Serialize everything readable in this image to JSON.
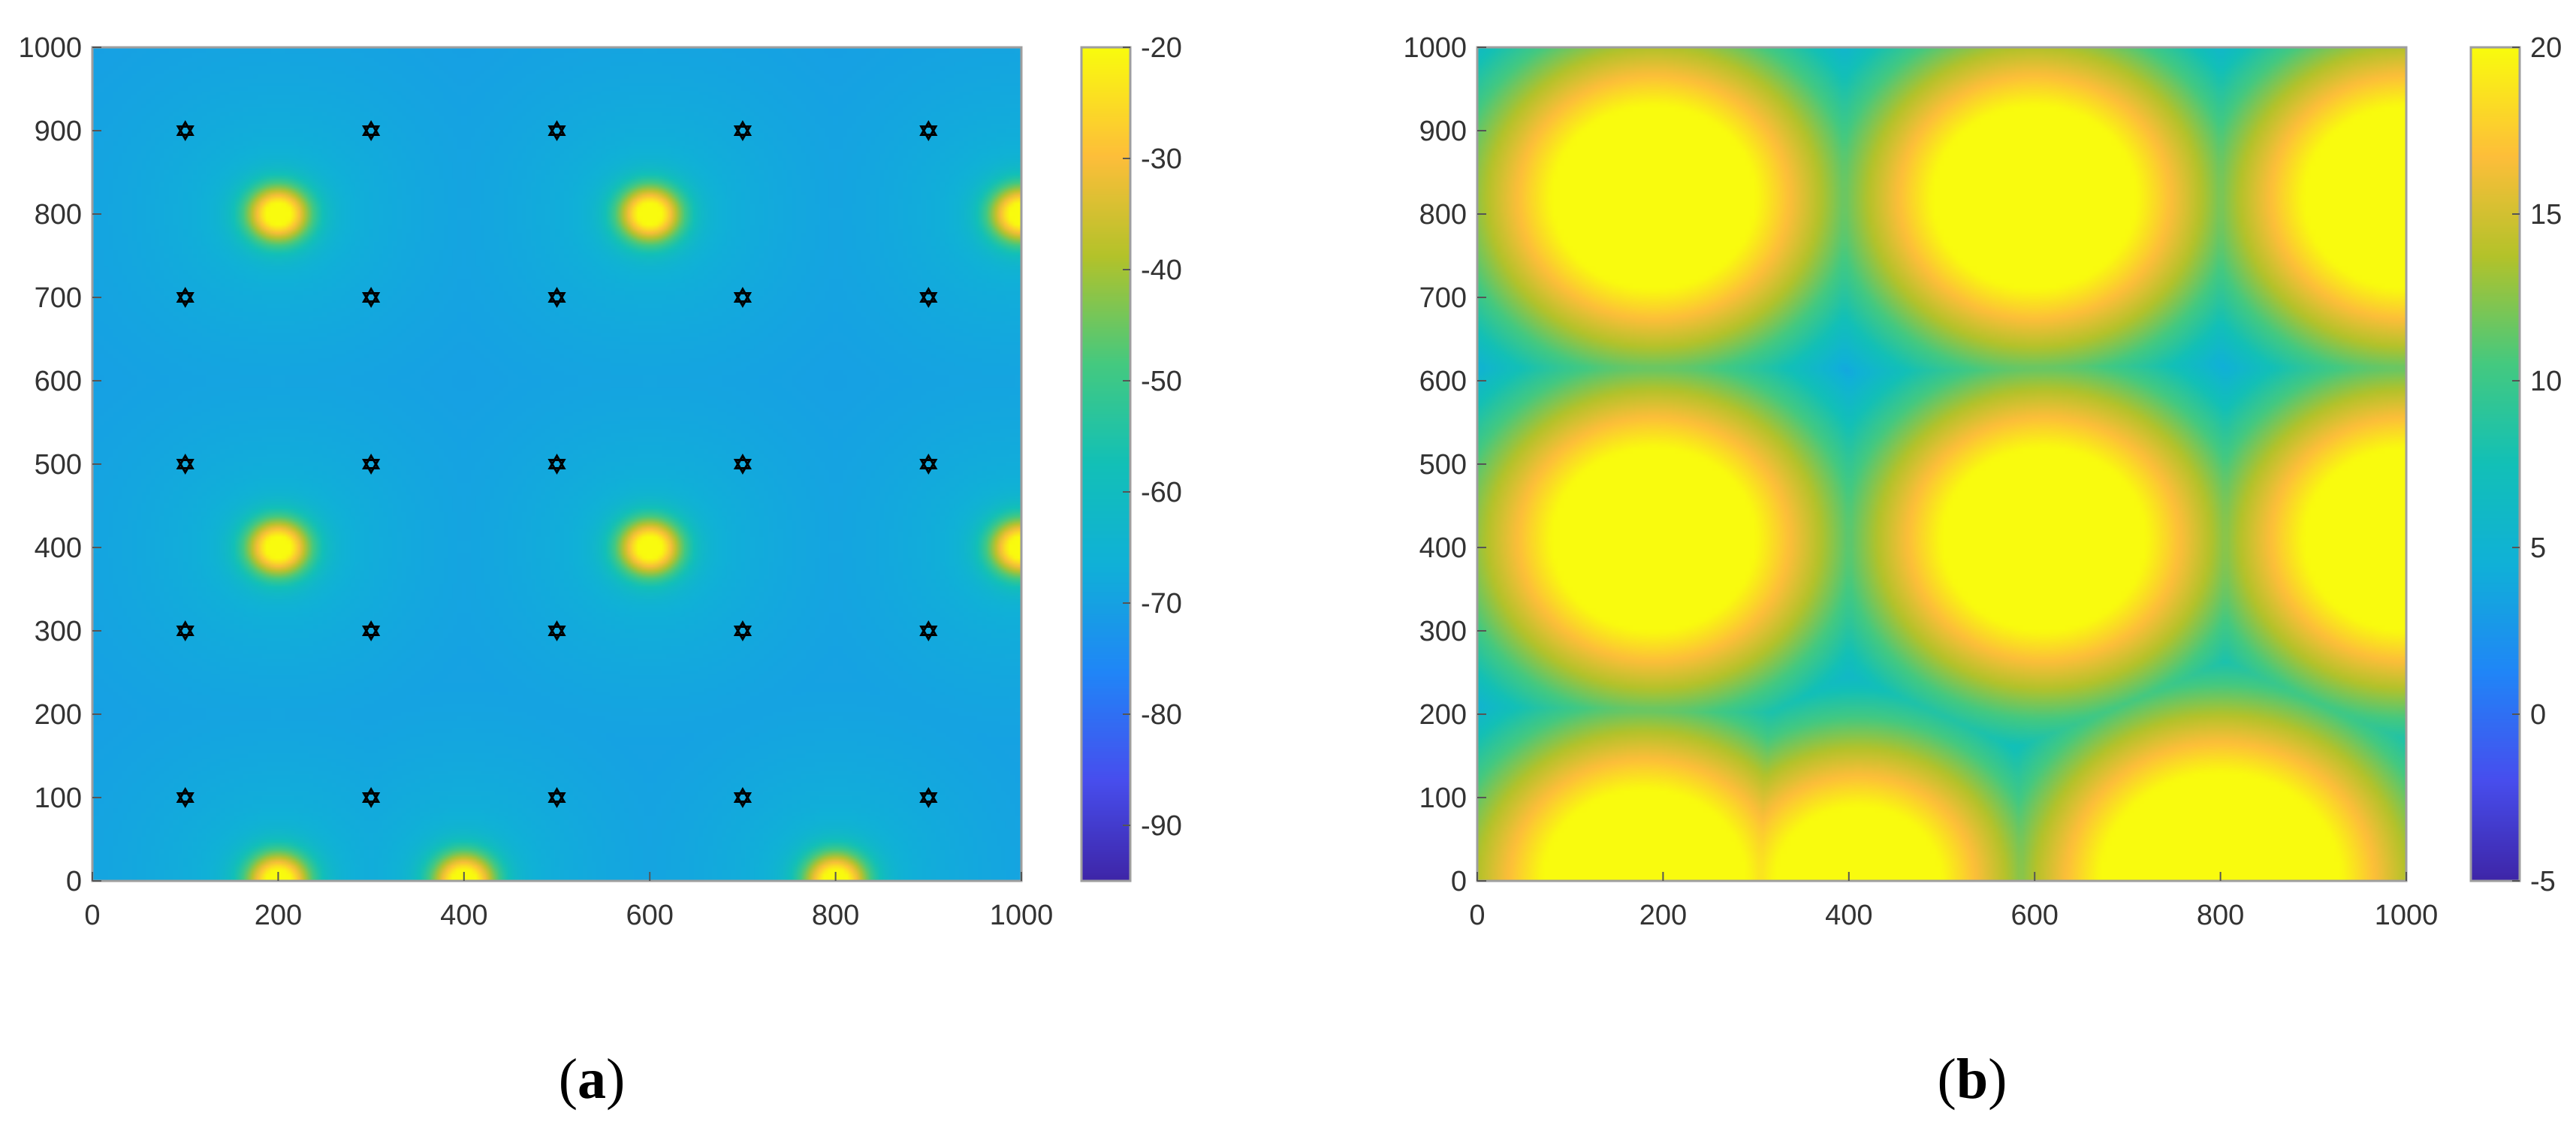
{
  "figure": {
    "panel_labels": [
      "a",
      "b"
    ]
  },
  "chart_data": [
    {
      "type": "heatmap",
      "panel": "a",
      "title": "",
      "xlabel": "",
      "ylabel": "",
      "xlim": [
        0,
        1000
      ],
      "ylim": [
        0,
        1000
      ],
      "x_ticks": [
        0,
        200,
        400,
        600,
        800,
        1000
      ],
      "x_tick_labels": [
        "0",
        "200",
        "400",
        "600",
        "800",
        "1000"
      ],
      "y_ticks": [
        0,
        100,
        200,
        300,
        400,
        500,
        600,
        700,
        800,
        900,
        1000
      ],
      "y_tick_labels": [
        "0",
        "100",
        "200",
        "300",
        "400",
        "500",
        "600",
        "700",
        "800",
        "900",
        "1000"
      ],
      "colorbar": {
        "range": [
          -95,
          -20
        ],
        "ticks": [
          -90,
          -80,
          -70,
          -60,
          -50,
          -40,
          -30,
          -20
        ],
        "tick_labels": [
          "-90",
          "-80",
          "-70",
          "-60",
          "-50",
          "-40",
          "-30",
          "-20"
        ]
      },
      "base_value": -72,
      "peak_value": -20,
      "peak_sigma": 25,
      "hot_spots": [
        {
          "x": 200,
          "y": 800
        },
        {
          "x": 600,
          "y": 800
        },
        {
          "x": 1000,
          "y": 800
        },
        {
          "x": 200,
          "y": 400
        },
        {
          "x": 600,
          "y": 400
        },
        {
          "x": 1000,
          "y": 400
        },
        {
          "x": 200,
          "y": 0
        },
        {
          "x": 400,
          "y": 0
        },
        {
          "x": 800,
          "y": 0
        }
      ],
      "markers": {
        "symbol": "hexagram",
        "color": "#000000",
        "x": [
          100,
          300,
          500,
          700,
          900
        ],
        "y": [
          100,
          300,
          500,
          700,
          900
        ]
      }
    },
    {
      "type": "heatmap",
      "panel": "b",
      "title": "",
      "xlabel": "",
      "ylabel": "",
      "xlim": [
        0,
        1000
      ],
      "ylim": [
        0,
        1000
      ],
      "x_ticks": [
        0,
        200,
        400,
        600,
        800,
        1000
      ],
      "x_tick_labels": [
        "0",
        "200",
        "400",
        "600",
        "800",
        "1000"
      ],
      "y_ticks": [
        0,
        100,
        200,
        300,
        400,
        500,
        600,
        700,
        800,
        900,
        1000
      ],
      "y_tick_labels": [
        "0",
        "100",
        "200",
        "300",
        "400",
        "500",
        "600",
        "700",
        "800",
        "900",
        "1000"
      ],
      "colorbar": {
        "range": [
          -5,
          20
        ],
        "ticks": [
          -5,
          0,
          5,
          10,
          15,
          20
        ],
        "tick_labels": [
          "-5",
          "0",
          "5",
          "10",
          "15",
          "20"
        ]
      },
      "min_value": -5,
      "max_value": 20,
      "regions": [
        {
          "x": 190,
          "y": 820,
          "r": 110
        },
        {
          "x": 600,
          "y": 820,
          "r": 110
        },
        {
          "x": 1000,
          "y": 820,
          "r": 110
        },
        {
          "x": 190,
          "y": 410,
          "r": 110
        },
        {
          "x": 610,
          "y": 410,
          "r": 110
        },
        {
          "x": 1000,
          "y": 410,
          "r": 110
        },
        {
          "x": 180,
          "y": 0,
          "r": 110
        },
        {
          "x": 410,
          "y": 0,
          "r": 90
        },
        {
          "x": 800,
          "y": 0,
          "r": 130
        }
      ]
    }
  ]
}
